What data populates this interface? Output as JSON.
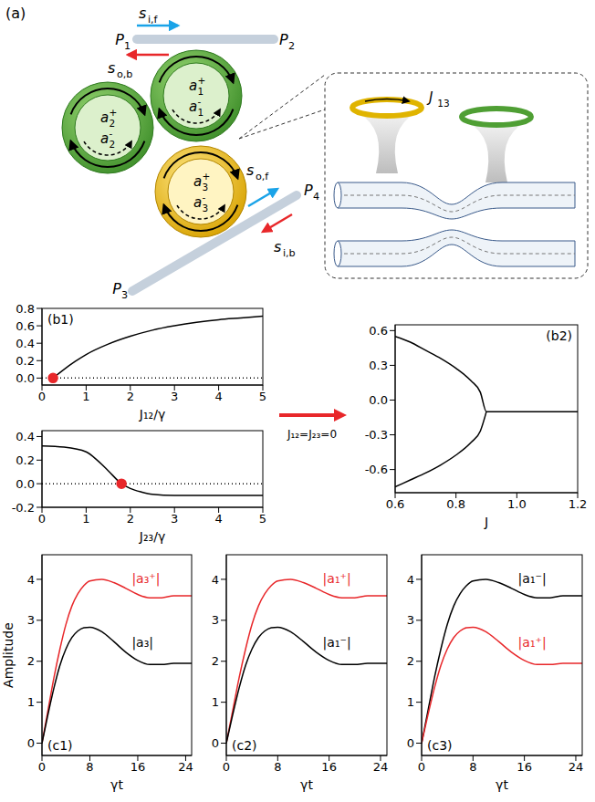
{
  "diagram": {
    "panel_label": "(a)",
    "ports": [
      {
        "base": "P",
        "sub": "1"
      },
      {
        "base": "P",
        "sub": "2"
      },
      {
        "base": "P",
        "sub": "3"
      },
      {
        "base": "P",
        "sub": "4"
      }
    ],
    "signals": [
      {
        "base": "s",
        "sub": "i,f"
      },
      {
        "base": "s",
        "sub": "o,b"
      },
      {
        "base": "s",
        "sub": "o,f"
      },
      {
        "base": "s",
        "sub": "i,b"
      }
    ],
    "modes": [
      [
        {
          "base": "a",
          "sub": "1",
          "sup": "+"
        },
        {
          "base": "a",
          "sub": "1",
          "sup": "-"
        }
      ],
      [
        {
          "base": "a",
          "sub": "2",
          "sup": "+"
        },
        {
          "base": "a",
          "sub": "2",
          "sup": "-"
        }
      ],
      [
        {
          "base": "a",
          "sub": "3",
          "sup": "+"
        },
        {
          "base": "a",
          "sub": "3",
          "sup": "-"
        }
      ]
    ],
    "coupling": {
      "base": "J",
      "sub": "13"
    }
  },
  "arrow_label": "J₁₂=J₂₃=0",
  "chart_data": [
    {
      "type": "line",
      "panel_label": "(b1)",
      "x_label": "J₁₂/γ",
      "x": [
        0,
        0.25,
        0.5,
        0.75,
        1,
        1.5,
        2,
        2.5,
        3,
        3.5,
        4,
        4.5,
        5
      ],
      "xlim": [
        0,
        5
      ],
      "xticks": [
        0,
        1,
        2,
        3,
        4,
        5
      ],
      "ylim": [
        -0.08,
        0.8
      ],
      "yticks": [
        {
          "value": 0,
          "label": "0.0"
        },
        0.2,
        0.4,
        0.6,
        0.8
      ],
      "series": [
        {
          "color": "#000000",
          "values": [
            null,
            0,
            0.1,
            0.19,
            0.27,
            0.39,
            0.48,
            0.55,
            0.6,
            0.64,
            0.67,
            0.69,
            0.71
          ]
        },
        {
          "color": "#000000",
          "line_style": "dotted",
          "values": [
            0,
            0,
            0,
            0,
            0,
            0,
            0,
            0,
            0,
            0,
            0,
            0,
            0
          ]
        },
        {
          "type": "scatter",
          "marker": "circle",
          "color": "#e8272a",
          "values": [
            null,
            0,
            null,
            null,
            null,
            null,
            null,
            null,
            null,
            null,
            null,
            null,
            null
          ]
        }
      ]
    },
    {
      "type": "line",
      "x_label": "J₂₃/γ",
      "x": [
        0,
        0.5,
        1,
        1.25,
        1.5,
        1.8,
        2,
        2.25,
        2.5,
        3,
        3.5,
        4,
        4.5,
        5
      ],
      "xlim": [
        0,
        5
      ],
      "xticks": [
        0,
        1,
        2,
        3,
        4,
        5
      ],
      "ylim": [
        -0.2,
        0.45
      ],
      "yticks": [
        -0.2,
        {
          "value": 0,
          "label": "0.0"
        },
        0.2,
        0.4
      ],
      "series": [
        {
          "color": "#000000",
          "values": [
            0.32,
            0.31,
            0.27,
            0.2,
            0.11,
            0,
            -0.04,
            -0.07,
            -0.09,
            -0.1,
            -0.1,
            -0.1,
            -0.1,
            -0.1
          ]
        },
        {
          "color": "#000000",
          "line_style": "dotted",
          "values": [
            0,
            0,
            0,
            0,
            0,
            0,
            0,
            0,
            0,
            0,
            0,
            0,
            0,
            0
          ]
        },
        {
          "type": "scatter",
          "marker": "circle",
          "color": "#e8272a",
          "values": [
            null,
            null,
            null,
            null,
            null,
            0,
            null,
            null,
            null,
            null,
            null,
            null,
            null,
            null
          ]
        }
      ]
    },
    {
      "type": "line",
      "panel_label": "(b2)",
      "x_label": "J",
      "x": [
        0.6,
        0.65,
        0.7,
        0.75,
        0.8,
        0.85,
        0.88,
        0.9,
        0.95,
        1,
        1.1,
        1.2
      ],
      "xlim": [
        0.6,
        1.2
      ],
      "xticks": [
        0.6,
        0.8,
        {
          "value": 1,
          "label": "1.0"
        },
        1.2
      ],
      "ylim": [
        -0.8,
        0.65
      ],
      "yticks": [
        -0.6,
        -0.3,
        {
          "value": 0,
          "label": "0.0"
        },
        0.3,
        0.6
      ],
      "series": [
        {
          "color": "#000000",
          "values": [
            0.55,
            0.5,
            0.43,
            0.36,
            0.275,
            0.165,
            0.068,
            -0.1,
            -0.1,
            -0.1,
            -0.1,
            -0.1
          ]
        },
        {
          "color": "#000000",
          "values": [
            -0.75,
            -0.69,
            -0.63,
            -0.56,
            -0.475,
            -0.365,
            -0.268,
            -0.1,
            null,
            null,
            null,
            null
          ]
        }
      ]
    },
    {
      "type": "line",
      "panel_label": "(c1)",
      "x_label": "γt",
      "y_label": "Amplitude",
      "x": [
        0,
        1,
        2,
        3,
        4,
        5,
        6,
        7,
        8,
        10,
        12,
        14,
        16,
        18,
        20,
        22,
        24,
        25
      ],
      "xlim": [
        0,
        25
      ],
      "xticks": [
        0,
        8,
        16,
        24
      ],
      "ylim": [
        -0.3,
        4.6
      ],
      "yticks": [
        0,
        1,
        2,
        3,
        4
      ],
      "series": [
        {
          "name": "|a₃⁺|",
          "color": "#e8272a",
          "values": [
            0,
            0.8,
            1.6,
            2.3,
            2.9,
            3.35,
            3.65,
            3.85,
            3.96,
            4.0,
            3.92,
            3.78,
            3.63,
            3.55,
            3.55,
            3.6,
            3.6,
            3.6
          ]
        },
        {
          "name": "|a₃|",
          "color": "#000000",
          "values": [
            0,
            0.7,
            1.35,
            1.9,
            2.3,
            2.58,
            2.74,
            2.82,
            2.83,
            2.72,
            2.48,
            2.22,
            2.02,
            1.92,
            1.92,
            1.95,
            1.95,
            1.95
          ]
        }
      ]
    },
    {
      "type": "line",
      "panel_label": "(c2)",
      "x_label": "γt",
      "x": [
        0,
        1,
        2,
        3,
        4,
        5,
        6,
        7,
        8,
        10,
        12,
        14,
        16,
        18,
        20,
        22,
        24,
        25
      ],
      "xlim": [
        0,
        25
      ],
      "xticks": [
        0,
        8,
        16,
        24
      ],
      "ylim": [
        -0.3,
        4.6
      ],
      "yticks": [
        0,
        1,
        2,
        3,
        4
      ],
      "series": [
        {
          "name": "|a₁⁺|",
          "color": "#e8272a",
          "values": [
            0,
            0.8,
            1.6,
            2.3,
            2.9,
            3.35,
            3.65,
            3.85,
            3.96,
            4.0,
            3.92,
            3.78,
            3.63,
            3.55,
            3.55,
            3.6,
            3.6,
            3.6
          ]
        },
        {
          "name": "|a₁⁻|",
          "color": "#000000",
          "values": [
            0,
            0.7,
            1.35,
            1.9,
            2.3,
            2.58,
            2.74,
            2.82,
            2.83,
            2.72,
            2.48,
            2.22,
            2.02,
            1.92,
            1.92,
            1.95,
            1.95,
            1.95
          ]
        }
      ]
    },
    {
      "type": "line",
      "panel_label": "(c3)",
      "x_label": "γt",
      "x": [
        0,
        1,
        2,
        3,
        4,
        5,
        6,
        7,
        8,
        10,
        12,
        14,
        16,
        18,
        20,
        22,
        24,
        25
      ],
      "xlim": [
        0,
        25
      ],
      "xticks": [
        0,
        8,
        16,
        24
      ],
      "ylim": [
        -0.3,
        4.6
      ],
      "yticks": [
        0,
        1,
        2,
        3,
        4
      ],
      "series": [
        {
          "name": "|a₁⁻|",
          "color": "#000000",
          "values": [
            0,
            0.8,
            1.6,
            2.3,
            2.9,
            3.35,
            3.65,
            3.85,
            3.96,
            4.0,
            3.92,
            3.78,
            3.63,
            3.55,
            3.55,
            3.6,
            3.6,
            3.6
          ]
        },
        {
          "name": "|a₁⁺|",
          "color": "#e8272a",
          "values": [
            0,
            0.7,
            1.35,
            1.9,
            2.3,
            2.58,
            2.74,
            2.82,
            2.83,
            2.72,
            2.48,
            2.22,
            2.02,
            1.92,
            1.92,
            1.95,
            1.95,
            1.95
          ]
        }
      ]
    }
  ]
}
